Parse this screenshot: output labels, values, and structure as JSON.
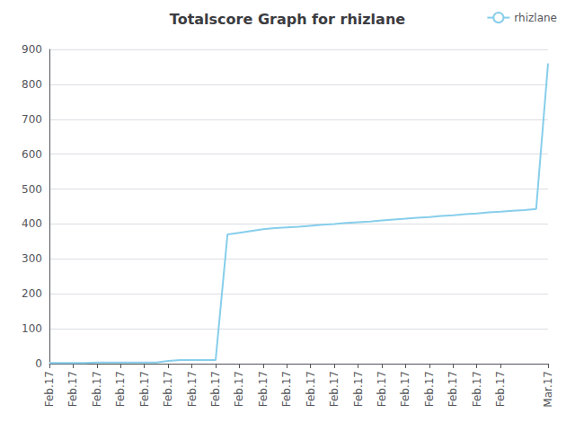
{
  "chart_data": {
    "type": "line",
    "title": "Totalscore Graph for rhizlane",
    "x": [
      0,
      1,
      2,
      3,
      4,
      5,
      6,
      7,
      8,
      9,
      10,
      11,
      12,
      13,
      14,
      15,
      16,
      17,
      18,
      19,
      20,
      21,
      22,
      23,
      24,
      25,
      26,
      27,
      28,
      29,
      30,
      31,
      32,
      33,
      34,
      35,
      36,
      37,
      38,
      39,
      40,
      41,
      42
    ],
    "series": [
      {
        "name": "rhizlane",
        "color": "#87CEEB",
        "values": [
          2,
          2,
          2,
          2,
          3,
          3,
          3,
          3,
          3,
          3,
          8,
          10,
          10,
          10,
          10,
          370,
          375,
          380,
          385,
          388,
          390,
          392,
          395,
          398,
          400,
          403,
          405,
          407,
          410,
          413,
          415,
          418,
          420,
          423,
          425,
          428,
          430,
          433,
          435,
          438,
          440,
          443,
          860
        ]
      }
    ],
    "xlim": [
      0,
      42
    ],
    "xticks": [
      {
        "value": 0,
        "label": "Feb.17"
      },
      {
        "value": 2,
        "label": "Feb.17"
      },
      {
        "value": 4,
        "label": "Feb.17"
      },
      {
        "value": 6,
        "label": "Feb.17"
      },
      {
        "value": 8,
        "label": "Feb.17"
      },
      {
        "value": 10,
        "label": "Feb.17"
      },
      {
        "value": 12,
        "label": "Feb.17"
      },
      {
        "value": 14,
        "label": "Feb.17"
      },
      {
        "value": 16,
        "label": "Feb.17"
      },
      {
        "value": 18,
        "label": "Feb.17"
      },
      {
        "value": 20,
        "label": "Feb.17"
      },
      {
        "value": 22,
        "label": "Feb.17"
      },
      {
        "value": 24,
        "label": "Feb.17"
      },
      {
        "value": 26,
        "label": "Feb.17"
      },
      {
        "value": 28,
        "label": "Feb.17"
      },
      {
        "value": 30,
        "label": "Feb.17"
      },
      {
        "value": 32,
        "label": "Feb.17"
      },
      {
        "value": 34,
        "label": "Feb.17"
      },
      {
        "value": 36,
        "label": "Feb.17"
      },
      {
        "value": 38,
        "label": "Feb.17"
      },
      {
        "value": 42,
        "label": "Mar.17"
      }
    ],
    "ylim": [
      0,
      900
    ],
    "yticks": [
      0,
      100,
      200,
      300,
      400,
      500,
      600,
      700,
      800,
      900
    ],
    "grid": true,
    "legend": "upper right"
  }
}
